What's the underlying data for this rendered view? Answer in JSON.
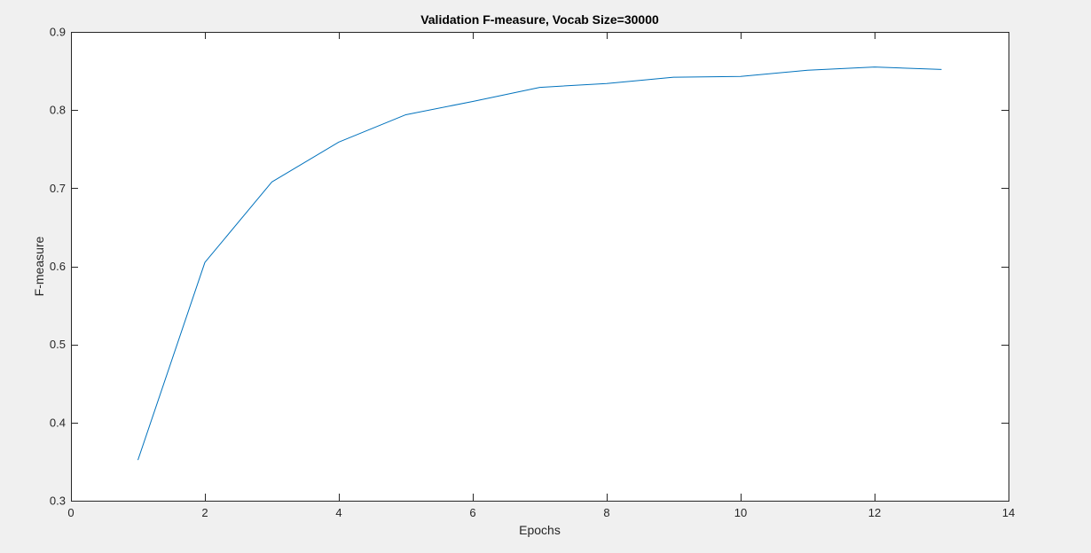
{
  "chart_data": {
    "type": "line",
    "title": "Validation F-measure, Vocab Size=30000",
    "xlabel": "Epochs",
    "ylabel": "F-measure",
    "xlim": [
      0,
      14
    ],
    "ylim": [
      0.3,
      0.9
    ],
    "xticks": [
      0,
      2,
      4,
      6,
      8,
      10,
      12,
      14
    ],
    "yticks": [
      0.3,
      0.4,
      0.5,
      0.6,
      0.7,
      0.8,
      0.9
    ],
    "xtick_labels": [
      "0",
      "2",
      "4",
      "6",
      "8",
      "10",
      "12",
      "14"
    ],
    "ytick_labels": [
      "0.3",
      "0.4",
      "0.5",
      "0.6",
      "0.7",
      "0.8",
      "0.9"
    ],
    "grid": false,
    "series": [
      {
        "color": "#0072bd",
        "x": [
          1,
          2,
          3,
          4,
          5,
          6,
          7,
          8,
          9,
          10,
          11,
          12,
          13
        ],
        "y": [
          0.352,
          0.605,
          0.708,
          0.759,
          0.794,
          0.811,
          0.829,
          0.834,
          0.842,
          0.843,
          0.851,
          0.855,
          0.852
        ]
      }
    ]
  },
  "colors": {
    "figure_background": "#f0f0f0",
    "axes_background": "#ffffff",
    "axes_color": "#262626",
    "line_color": "#0072bd"
  }
}
